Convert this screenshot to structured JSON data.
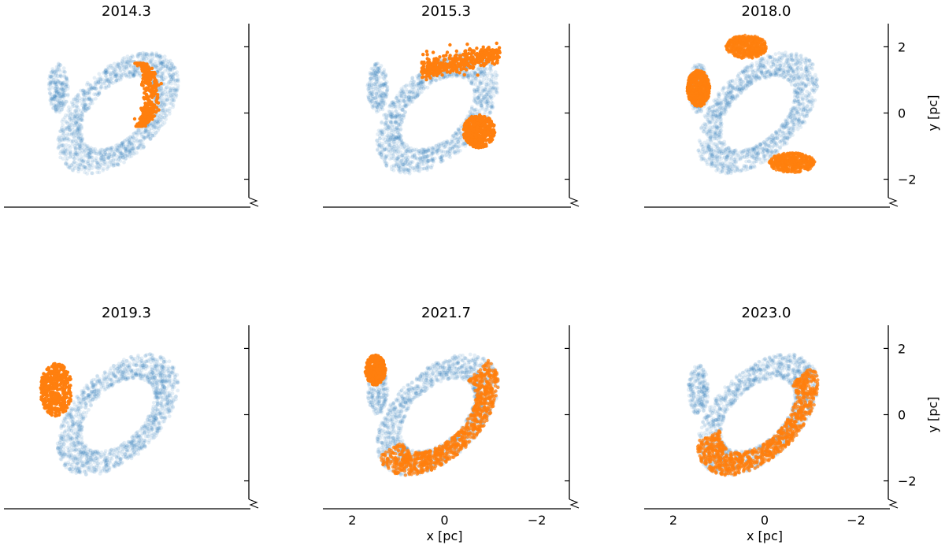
{
  "chart_data": [
    {
      "type": "scatter",
      "title": "2014.3",
      "xlabel": "",
      "ylabel": "",
      "x_ticks": [],
      "y_ticks": [],
      "xlim": [
        2.5,
        -2.5
      ],
      "ylim": [
        -2.7,
        2.7
      ],
      "grid": false,
      "series": [
        {
          "color": "#1f77b4",
          "opacity": 0.12,
          "shape": "ring",
          "center": [
            0.15,
            0.0
          ],
          "semi_axes": [
            1.05,
            2.0
          ],
          "rotation_deg": 28,
          "hole_ratio": 0.6
        },
        {
          "color": "#1f77b4",
          "opacity": 0.12,
          "shape": "blob",
          "center": [
            1.45,
            0.75
          ],
          "semi_axes": [
            0.22,
            0.75
          ]
        },
        {
          "color": "#ff7f0e",
          "opacity": 1.0,
          "shape": "crescent",
          "center": [
            -0.45,
            0.55
          ],
          "semi_axes": [
            0.45,
            0.95
          ]
        }
      ]
    },
    {
      "type": "scatter",
      "title": "2015.3",
      "xlabel": "",
      "ylabel": "",
      "x_ticks": [],
      "y_ticks": [],
      "xlim": [
        2.5,
        -2.5
      ],
      "ylim": [
        -2.7,
        2.7
      ],
      "grid": false,
      "series": [
        {
          "color": "#1f77b4",
          "opacity": 0.12,
          "shape": "ring",
          "center": [
            0.15,
            0.0
          ],
          "semi_axes": [
            1.05,
            2.0
          ],
          "rotation_deg": 28,
          "hole_ratio": 0.6
        },
        {
          "color": "#1f77b4",
          "opacity": 0.12,
          "shape": "blob",
          "center": [
            1.45,
            0.75
          ],
          "semi_axes": [
            0.22,
            0.75
          ]
        },
        {
          "color": "#ff7f0e",
          "opacity": 1.0,
          "shape": "arc",
          "center": [
            -0.35,
            1.55
          ],
          "semi_axes": [
            0.85,
            0.35
          ]
        },
        {
          "color": "#ff7f0e",
          "opacity": 1.0,
          "shape": "blob",
          "center": [
            -0.75,
            -0.55
          ],
          "semi_axes": [
            0.35,
            0.5
          ]
        }
      ]
    },
    {
      "type": "scatter",
      "title": "2018.0",
      "xlabel": "",
      "ylabel": "y [pc]",
      "x_ticks": [],
      "y_ticks": [
        2,
        0,
        -2
      ],
      "xlim": [
        2.5,
        -2.5
      ],
      "ylim": [
        -2.7,
        2.7
      ],
      "grid": false,
      "series": [
        {
          "color": "#1f77b4",
          "opacity": 0.12,
          "shape": "ring",
          "center": [
            0.15,
            0.0
          ],
          "semi_axes": [
            1.05,
            2.0
          ],
          "rotation_deg": 28,
          "hole_ratio": 0.6
        },
        {
          "color": "#1f77b4",
          "opacity": 0.12,
          "shape": "blob",
          "center": [
            1.45,
            0.75
          ],
          "semi_axes": [
            0.22,
            0.75
          ]
        },
        {
          "color": "#ff7f0e",
          "opacity": 0.95,
          "shape": "blob",
          "center": [
            1.45,
            0.75
          ],
          "semi_axes": [
            0.25,
            0.55
          ]
        },
        {
          "color": "#ff7f0e",
          "opacity": 0.8,
          "shape": "blob",
          "center": [
            0.4,
            2.0
          ],
          "semi_axes": [
            0.45,
            0.35
          ]
        },
        {
          "color": "#ff7f0e",
          "opacity": 0.8,
          "shape": "blob",
          "center": [
            -0.6,
            -1.5
          ],
          "semi_axes": [
            0.5,
            0.3
          ]
        }
      ]
    },
    {
      "type": "scatter",
      "title": "2019.3",
      "xlabel": "",
      "ylabel": "",
      "x_ticks": [],
      "y_ticks": [],
      "xlim": [
        2.5,
        -2.5
      ],
      "ylim": [
        -2.7,
        2.7
      ],
      "grid": false,
      "series": [
        {
          "color": "#1f77b4",
          "opacity": 0.12,
          "shape": "ring",
          "center": [
            0.15,
            0.0
          ],
          "semi_axes": [
            1.05,
            2.0
          ],
          "rotation_deg": 28,
          "hole_ratio": 0.6
        },
        {
          "color": "#ff7f0e",
          "opacity": 1.0,
          "shape": "blob",
          "center": [
            1.5,
            0.75
          ],
          "semi_axes": [
            0.35,
            0.8
          ]
        }
      ]
    },
    {
      "type": "scatter",
      "title": "2021.7",
      "xlabel": "x [pc]",
      "ylabel": "",
      "x_ticks": [
        2,
        0,
        -2
      ],
      "y_ticks": [],
      "xlim": [
        2.5,
        -2.5
      ],
      "ylim": [
        -2.7,
        2.7
      ],
      "grid": false,
      "series": [
        {
          "color": "#1f77b4",
          "opacity": 0.12,
          "shape": "ring",
          "center": [
            0.15,
            0.0
          ],
          "semi_axes": [
            1.05,
            2.0
          ],
          "rotation_deg": 28,
          "hole_ratio": 0.6
        },
        {
          "color": "#1f77b4",
          "opacity": 0.12,
          "shape": "blob",
          "center": [
            1.45,
            0.75
          ],
          "semi_axes": [
            0.22,
            0.75
          ]
        },
        {
          "color": "#ff7f0e",
          "opacity": 1.0,
          "shape": "blob",
          "center": [
            1.5,
            1.35
          ],
          "semi_axes": [
            0.22,
            0.45
          ]
        },
        {
          "color": "#ff7f0e",
          "opacity": 0.75,
          "shape": "arc-band",
          "center": [
            0.15,
            0.0
          ],
          "semi_axes": [
            1.05,
            2.0
          ],
          "rotation_deg": 28,
          "arc_from_deg": 100,
          "arc_to_deg": 300
        }
      ]
    },
    {
      "type": "scatter",
      "title": "2023.0",
      "xlabel": "x [pc]",
      "ylabel": "y [pc]",
      "x_ticks": [
        2,
        0,
        -2
      ],
      "y_ticks": [
        2,
        0,
        -2
      ],
      "xlim": [
        2.5,
        -2.5
      ],
      "ylim": [
        -2.7,
        2.7
      ],
      "grid": false,
      "series": [
        {
          "color": "#1f77b4",
          "opacity": 0.12,
          "shape": "ring",
          "center": [
            0.15,
            0.0
          ],
          "semi_axes": [
            1.05,
            2.0
          ],
          "rotation_deg": 28,
          "hole_ratio": 0.6
        },
        {
          "color": "#1f77b4",
          "opacity": 0.12,
          "shape": "blob",
          "center": [
            1.45,
            0.75
          ],
          "semi_axes": [
            0.22,
            0.75
          ]
        },
        {
          "color": "#ff7f0e",
          "opacity": 0.75,
          "shape": "arc-band",
          "center": [
            0.15,
            0.0
          ],
          "semi_axes": [
            1.05,
            2.0
          ],
          "rotation_deg": 28,
          "arc_from_deg": 110,
          "arc_to_deg": 320
        }
      ]
    }
  ]
}
